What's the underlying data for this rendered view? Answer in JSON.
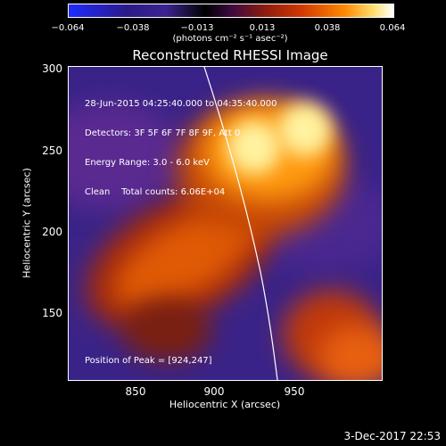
{
  "colorbar": {
    "ticks": [
      "−0.064",
      "−0.038",
      "−0.013",
      "0.013",
      "0.038",
      "0.064"
    ],
    "unit": "(photons cm⁻² s⁻¹ asec⁻²)"
  },
  "plot": {
    "title": "Reconstructed RHESSI Image",
    "info_lines": [
      "28-Jun-2015 04:25:40.000 to 04:35:40.000",
      "Detectors: 3F 5F 6F 7F 8F 9F, Att 0",
      "Energy Range: 3.0 - 6.0 keV",
      "Clean    Total counts: 6.06E+04"
    ],
    "peak_text": "Position of Peak = [924,247]",
    "xlabel": "Heliocentric X (arcsec)",
    "ylabel": "Heliocentric Y (arcsec)",
    "xticks": [
      "850",
      "900",
      "950"
    ],
    "yticks": [
      "300",
      "250",
      "200",
      "150"
    ]
  },
  "footer": {
    "date": "3-Dec-2017 22:53"
  }
}
